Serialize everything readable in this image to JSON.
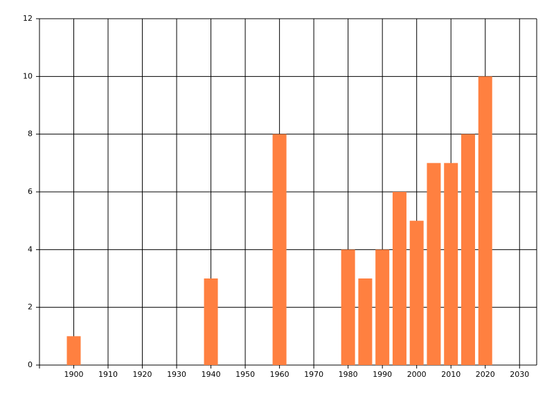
{
  "chart_data": {
    "type": "bar",
    "x": [
      1900,
      1940,
      1960,
      1980,
      1985,
      1990,
      1995,
      2000,
      2005,
      2010,
      2015,
      2020
    ],
    "values": [
      1,
      3,
      8,
      4,
      3,
      4,
      6,
      5,
      7,
      7,
      8,
      10
    ],
    "color": "#ff8040",
    "xlim": [
      1890,
      2035
    ],
    "xticks": [
      1900,
      1910,
      1920,
      1930,
      1940,
      1950,
      1960,
      1970,
      1980,
      1990,
      2000,
      2010,
      2020,
      2030
    ],
    "ylim": [
      0,
      12
    ],
    "yticks": [
      0,
      2,
      4,
      6,
      8,
      10,
      12
    ],
    "grid": true
  }
}
